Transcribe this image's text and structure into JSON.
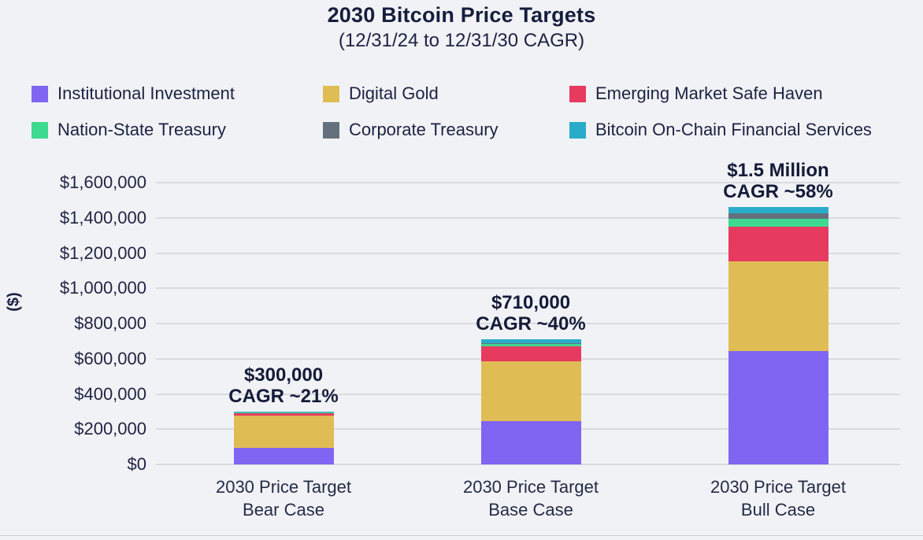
{
  "title": "2030 Bitcoin Price Targets",
  "subtitle": "(12/31/24 to 12/31/30 CAGR)",
  "colors": {
    "background": "#F1F2F5",
    "text": "#1B2242",
    "gridline": "#D9DBDE",
    "institutional_investment": "#8065F2",
    "digital_gold": "#E0BC55",
    "emerging_market_safe_haven": "#E63A5F",
    "nation_state_treasury": "#3ED990",
    "corporate_treasury": "#65707E",
    "bitcoin_on_chain_financial_services": "#29ACC9"
  },
  "chart_data": {
    "type": "bar",
    "stacked": true,
    "title": "2030 Bitcoin Price Targets",
    "subtitle": "(12/31/24 to 12/31/30 CAGR)",
    "ylabel": "($)",
    "xlabel": "",
    "ylim": [
      0,
      1600000
    ],
    "ytick_step": 200000,
    "grid": true,
    "legend_position": "top",
    "yticks": [
      {
        "value": 0,
        "label": "$0"
      },
      {
        "value": 200000,
        "label": "$200,000"
      },
      {
        "value": 400000,
        "label": "$400,000"
      },
      {
        "value": 600000,
        "label": "$600,000"
      },
      {
        "value": 800000,
        "label": "$800,000"
      },
      {
        "value": 1000000,
        "label": "$1,000,000"
      },
      {
        "value": 1200000,
        "label": "$1,200,000"
      },
      {
        "value": 1400000,
        "label": "$1,400,000"
      },
      {
        "value": 1600000,
        "label": "$1,600,000"
      }
    ],
    "categories": [
      {
        "line1": "2030 Price Target",
        "line2": "Bear Case"
      },
      {
        "line1": "2030 Price Target",
        "line2": "Base Case"
      },
      {
        "line1": "2030 Price Target",
        "line2": "Bull Case"
      }
    ],
    "series": [
      {
        "name": "Institutional Investment",
        "color": "#8065F2",
        "values": [
          95000,
          245000,
          645000
        ]
      },
      {
        "name": "Digital Gold",
        "color": "#E0BC55",
        "values": [
          180000,
          340000,
          510000
        ]
      },
      {
        "name": "Emerging Market Safe Haven",
        "color": "#E63A5F",
        "values": [
          16000,
          85000,
          195000
        ]
      },
      {
        "name": "Nation-State Treasury",
        "color": "#3ED990",
        "values": [
          2000,
          15000,
          45000
        ]
      },
      {
        "name": "Corporate Treasury",
        "color": "#65707E",
        "values": [
          2000,
          5000,
          33000
        ]
      },
      {
        "name": "Bitcoin On-Chain Financial Services",
        "color": "#29ACC9",
        "values": [
          5000,
          20000,
          32000
        ]
      }
    ],
    "totals": [
      300000,
      710000,
      1460000
    ],
    "annotations": [
      {
        "value": "$300,000",
        "cagr": "CAGR ~21%"
      },
      {
        "value": "$710,000",
        "cagr": "CAGR ~40%"
      },
      {
        "value": "$1.5 Million",
        "cagr": "CAGR ~58%"
      }
    ]
  }
}
